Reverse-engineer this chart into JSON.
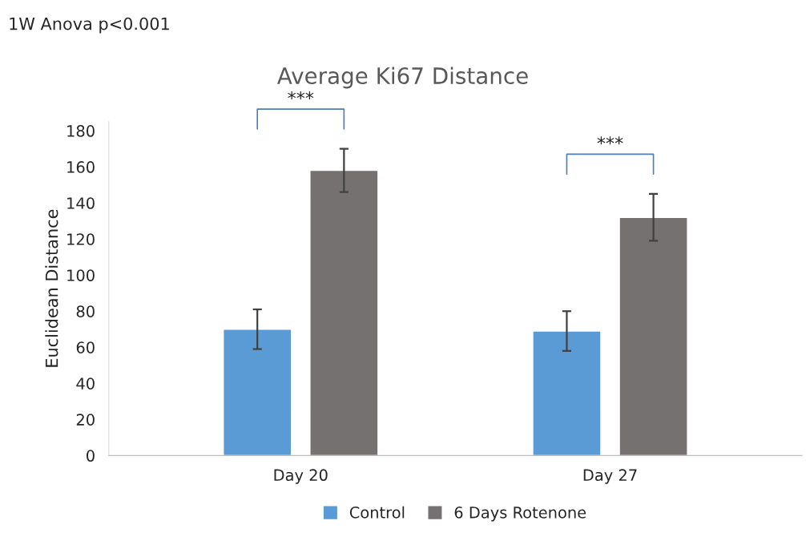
{
  "chart_data": {
    "type": "bar",
    "title": "Average Ki67 Distance",
    "ylabel": "Euclidean Distance",
    "categories": [
      "Day 20",
      "Day 27"
    ],
    "series": [
      {
        "name": "Control",
        "color": "#5b9bd5",
        "values": [
          70,
          69
        ],
        "errors": [
          11,
          11
        ]
      },
      {
        "name": "6 Days Rotenone",
        "color": "#767171",
        "values": [
          158,
          132
        ],
        "errors": [
          12,
          13
        ]
      }
    ],
    "ylim": [
      0,
      185
    ],
    "yticks": [
      0,
      20,
      40,
      60,
      80,
      100,
      120,
      140,
      160,
      180
    ],
    "grid": false,
    "legend": "bottom",
    "annotations": [
      "1W Anova p<0.001",
      "***",
      "***"
    ]
  }
}
